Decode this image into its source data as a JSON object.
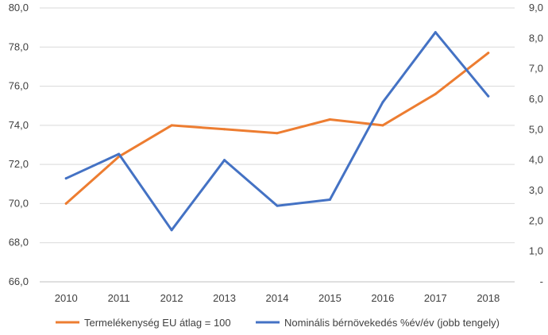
{
  "chart_data": {
    "type": "line",
    "title": "",
    "x": [
      "2010",
      "2011",
      "2012",
      "2013",
      "2014",
      "2015",
      "2016",
      "2017",
      "2018"
    ],
    "left_axis": {
      "ylim": [
        66,
        80
      ],
      "ticks": [
        "66,0",
        "68,0",
        "70,0",
        "72,0",
        "74,0",
        "76,0",
        "78,0",
        "80,0"
      ]
    },
    "right_axis": {
      "ylim": [
        0,
        9
      ],
      "ticks": [
        "-",
        "1,0",
        "2,0",
        "3,0",
        "4,0",
        "5,0",
        "6,0",
        "7,0",
        "8,0",
        "9,0"
      ]
    },
    "grid": true,
    "legend_position": "bottom",
    "series": [
      {
        "name": "Termelékenység EU átlag = 100",
        "axis": "left",
        "color": "#ED7D31",
        "values": [
          70.0,
          72.4,
          74.0,
          73.8,
          73.6,
          74.3,
          74.0,
          75.6,
          77.7
        ]
      },
      {
        "name": "Nominális bérnövekedés %év/év (jobb tengely)",
        "axis": "right",
        "color": "#4472C4",
        "values": [
          3.4,
          4.2,
          1.7,
          4.0,
          2.5,
          2.7,
          5.9,
          8.2,
          6.1
        ]
      }
    ]
  }
}
